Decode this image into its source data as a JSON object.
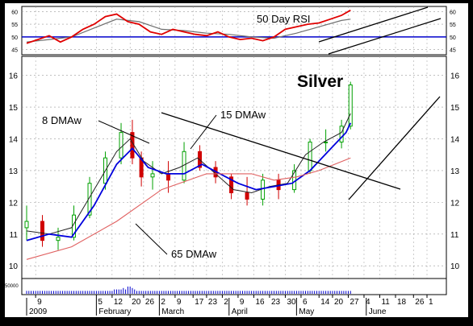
{
  "colors": {
    "frame": "#000000",
    "panel_bg": "#ffffff",
    "grid": "#9a9a9a",
    "rsi": "#e00000",
    "rsi_avg": "#707070",
    "rsi_ref": "#0000cc",
    "up_candle": "#00a000",
    "down_candle": "#d00000",
    "ma8": "#222222",
    "ma15": "#0000dd",
    "ma65": "#e06060",
    "trendline": "#000000",
    "volume": "#0000cc"
  },
  "chart_data": {
    "type": "line",
    "title": "Silver",
    "timeframe": "daily",
    "x_start": "2009-01-05",
    "x_end": "2009-05-29",
    "rsi_panel": {
      "label": "50 Day RSI",
      "yticks": [
        45,
        50,
        55,
        60
      ],
      "ylim": [
        43,
        62
      ],
      "reference_level": 50,
      "rsi": [
        [
          0,
          47.5
        ],
        [
          5,
          49
        ],
        [
          10,
          50.5
        ],
        [
          15,
          48
        ],
        [
          20,
          50
        ],
        [
          25,
          53
        ],
        [
          30,
          55
        ],
        [
          35,
          58
        ],
        [
          40,
          59
        ],
        [
          45,
          56
        ],
        [
          50,
          55
        ],
        [
          55,
          52
        ],
        [
          60,
          51
        ],
        [
          65,
          53
        ],
        [
          70,
          52
        ],
        [
          75,
          51
        ],
        [
          80,
          50.5
        ],
        [
          85,
          52
        ],
        [
          90,
          50
        ],
        [
          95,
          49
        ],
        [
          100,
          49.5
        ],
        [
          105,
          48.5
        ],
        [
          110,
          50
        ],
        [
          115,
          53
        ],
        [
          120,
          54
        ],
        [
          125,
          55
        ],
        [
          130,
          55.5
        ],
        [
          135,
          57
        ],
        [
          140,
          58.5
        ],
        [
          144,
          60.5
        ]
      ],
      "rsi_average": [
        [
          0,
          48
        ],
        [
          10,
          49
        ],
        [
          20,
          50
        ],
        [
          30,
          53.5
        ],
        [
          40,
          57
        ],
        [
          50,
          56
        ],
        [
          60,
          53
        ],
        [
          70,
          52.5
        ],
        [
          80,
          51.5
        ],
        [
          90,
          51
        ],
        [
          100,
          50
        ],
        [
          110,
          49.5
        ],
        [
          120,
          51.5
        ],
        [
          130,
          54
        ],
        [
          140,
          56.5
        ],
        [
          144,
          57
        ]
      ]
    },
    "price_panel": {
      "ylabel": "",
      "yticks": [
        10,
        11,
        12,
        13,
        14,
        15,
        16
      ],
      "ylim": [
        9.6,
        16.6
      ],
      "x_tick_days": [
        "9",
        "5",
        "12",
        "20",
        "26",
        "2",
        "9",
        "17",
        "23",
        "2",
        "9",
        "16",
        "23",
        "30",
        "6",
        "14",
        "20",
        "27",
        "4",
        "11",
        "18",
        "26",
        "1"
      ],
      "x_tick_offsets": [
        4,
        31,
        38,
        46,
        52,
        59,
        66,
        74,
        80,
        87,
        94,
        101,
        108,
        115,
        122,
        130,
        136,
        143,
        150,
        157,
        164,
        172,
        178
      ],
      "months": [
        {
          "label": "2009",
          "offset": 0
        },
        {
          "label": "February",
          "offset": 31
        },
        {
          "label": "March",
          "offset": 59
        },
        {
          "label": "April",
          "offset": 90
        },
        {
          "label": "May",
          "offset": 120
        },
        {
          "label": "June",
          "offset": 151
        }
      ],
      "candles": [
        {
          "x": 0,
          "o": 11.2,
          "h": 11.9,
          "l": 10.8,
          "c": 11.4
        },
        {
          "x": 7,
          "o": 11.4,
          "h": 11.6,
          "l": 10.6,
          "c": 10.8
        },
        {
          "x": 14,
          "o": 10.8,
          "h": 11.2,
          "l": 10.5,
          "c": 10.9
        },
        {
          "x": 21,
          "o": 10.9,
          "h": 11.9,
          "l": 10.8,
          "c": 11.6
        },
        {
          "x": 28,
          "o": 11.6,
          "h": 12.8,
          "l": 11.5,
          "c": 12.6
        },
        {
          "x": 35,
          "o": 12.6,
          "h": 13.6,
          "l": 12.4,
          "c": 13.4
        },
        {
          "x": 42,
          "o": 13.4,
          "h": 14.5,
          "l": 13.2,
          "c": 14.2
        },
        {
          "x": 47,
          "o": 14.2,
          "h": 14.6,
          "l": 13.2,
          "c": 13.4
        },
        {
          "x": 51,
          "o": 13.4,
          "h": 13.6,
          "l": 12.5,
          "c": 12.8
        },
        {
          "x": 56,
          "o": 12.8,
          "h": 13.3,
          "l": 12.4,
          "c": 12.9
        },
        {
          "x": 63,
          "o": 12.9,
          "h": 13.3,
          "l": 12.3,
          "c": 12.7
        },
        {
          "x": 70,
          "o": 12.7,
          "h": 13.9,
          "l": 12.6,
          "c": 13.6
        },
        {
          "x": 77,
          "o": 13.6,
          "h": 13.8,
          "l": 13.0,
          "c": 13.1
        },
        {
          "x": 84,
          "o": 13.1,
          "h": 13.3,
          "l": 12.6,
          "c": 12.8
        },
        {
          "x": 91,
          "o": 12.8,
          "h": 12.9,
          "l": 12.1,
          "c": 12.3
        },
        {
          "x": 98,
          "o": 12.3,
          "h": 12.8,
          "l": 11.9,
          "c": 12.1
        },
        {
          "x": 105,
          "o": 12.1,
          "h": 12.9,
          "l": 11.9,
          "c": 12.7
        },
        {
          "x": 112,
          "o": 12.7,
          "h": 12.9,
          "l": 12.1,
          "c": 12.4
        },
        {
          "x": 119,
          "o": 12.4,
          "h": 13.2,
          "l": 12.3,
          "c": 13.0
        },
        {
          "x": 126,
          "o": 13.0,
          "h": 14.0,
          "l": 12.9,
          "c": 13.9
        },
        {
          "x": 133,
          "o": 13.9,
          "h": 14.3,
          "l": 13.6,
          "c": 13.9
        },
        {
          "x": 140,
          "o": 13.9,
          "h": 14.6,
          "l": 13.7,
          "c": 14.4
        },
        {
          "x": 144,
          "o": 14.4,
          "h": 15.8,
          "l": 14.3,
          "c": 15.7
        }
      ],
      "series": [
        {
          "name": "8 DMAw",
          "points": [
            [
              0,
              11.1
            ],
            [
              10,
              11.0
            ],
            [
              20,
              11.2
            ],
            [
              30,
              12.4
            ],
            [
              40,
              13.6
            ],
            [
              46,
              14.0
            ],
            [
              52,
              13.3
            ],
            [
              60,
              12.9
            ],
            [
              68,
              13.1
            ],
            [
              76,
              13.4
            ],
            [
              84,
              12.9
            ],
            [
              92,
              12.4
            ],
            [
              100,
              12.3
            ],
            [
              108,
              12.5
            ],
            [
              116,
              12.6
            ],
            [
              124,
              13.5
            ],
            [
              132,
              13.9
            ],
            [
              140,
              14.2
            ],
            [
              144,
              14.8
            ]
          ]
        },
        {
          "name": "15 DMAw",
          "points": [
            [
              0,
              10.8
            ],
            [
              10,
              11.0
            ],
            [
              20,
              10.9
            ],
            [
              30,
              11.9
            ],
            [
              40,
              13.2
            ],
            [
              47,
              13.7
            ],
            [
              54,
              13.1
            ],
            [
              62,
              12.9
            ],
            [
              70,
              12.9
            ],
            [
              78,
              13.2
            ],
            [
              86,
              12.9
            ],
            [
              94,
              12.6
            ],
            [
              102,
              12.4
            ],
            [
              110,
              12.5
            ],
            [
              118,
              12.6
            ],
            [
              126,
              13.0
            ],
            [
              134,
              13.6
            ],
            [
              142,
              14.2
            ],
            [
              144,
              14.5
            ]
          ]
        },
        {
          "name": "65 DMAw",
          "points": [
            [
              0,
              10.2
            ],
            [
              20,
              10.6
            ],
            [
              40,
              11.4
            ],
            [
              60,
              12.4
            ],
            [
              80,
              12.9
            ],
            [
              100,
              12.9
            ],
            [
              110,
              12.7
            ],
            [
              120,
              12.8
            ],
            [
              130,
              13.0
            ],
            [
              144,
              13.4
            ]
          ]
        }
      ],
      "volume_tick": "50000",
      "volume": [
        2,
        2,
        2,
        2,
        2,
        2,
        2,
        2,
        2,
        2,
        2,
        2,
        2,
        2,
        2,
        2,
        2,
        2,
        2,
        2,
        2,
        2,
        2,
        2,
        2,
        2,
        2,
        2,
        2,
        2,
        2,
        2,
        2,
        2,
        2,
        2,
        2,
        2,
        2,
        3,
        3,
        3,
        3,
        4,
        3,
        5,
        5,
        4,
        3,
        2,
        2,
        2,
        2,
        2,
        2,
        2,
        2,
        2,
        2,
        2,
        2,
        2,
        2,
        2,
        2,
        2,
        2,
        2,
        2,
        2,
        2,
        2,
        2,
        2,
        2,
        2,
        2,
        2,
        2,
        2,
        2,
        2,
        2,
        2,
        2,
        2,
        2,
        2,
        2,
        2,
        2,
        2,
        2,
        2,
        2,
        2,
        2,
        2,
        2,
        2,
        2,
        2,
        2,
        2,
        2,
        2,
        2,
        2,
        2,
        2,
        2,
        2,
        2,
        2,
        2,
        2,
        2,
        2,
        2,
        2,
        2,
        2,
        2,
        2,
        2,
        2,
        2,
        2,
        2,
        2,
        2,
        2,
        2,
        2,
        2,
        2,
        2,
        2,
        2,
        2,
        2,
        2,
        2,
        2,
        2
      ]
    },
    "annotations": [
      {
        "text": "8 DMAw"
      },
      {
        "text": "15 DMAw"
      },
      {
        "text": "65 DMAw"
      }
    ]
  }
}
